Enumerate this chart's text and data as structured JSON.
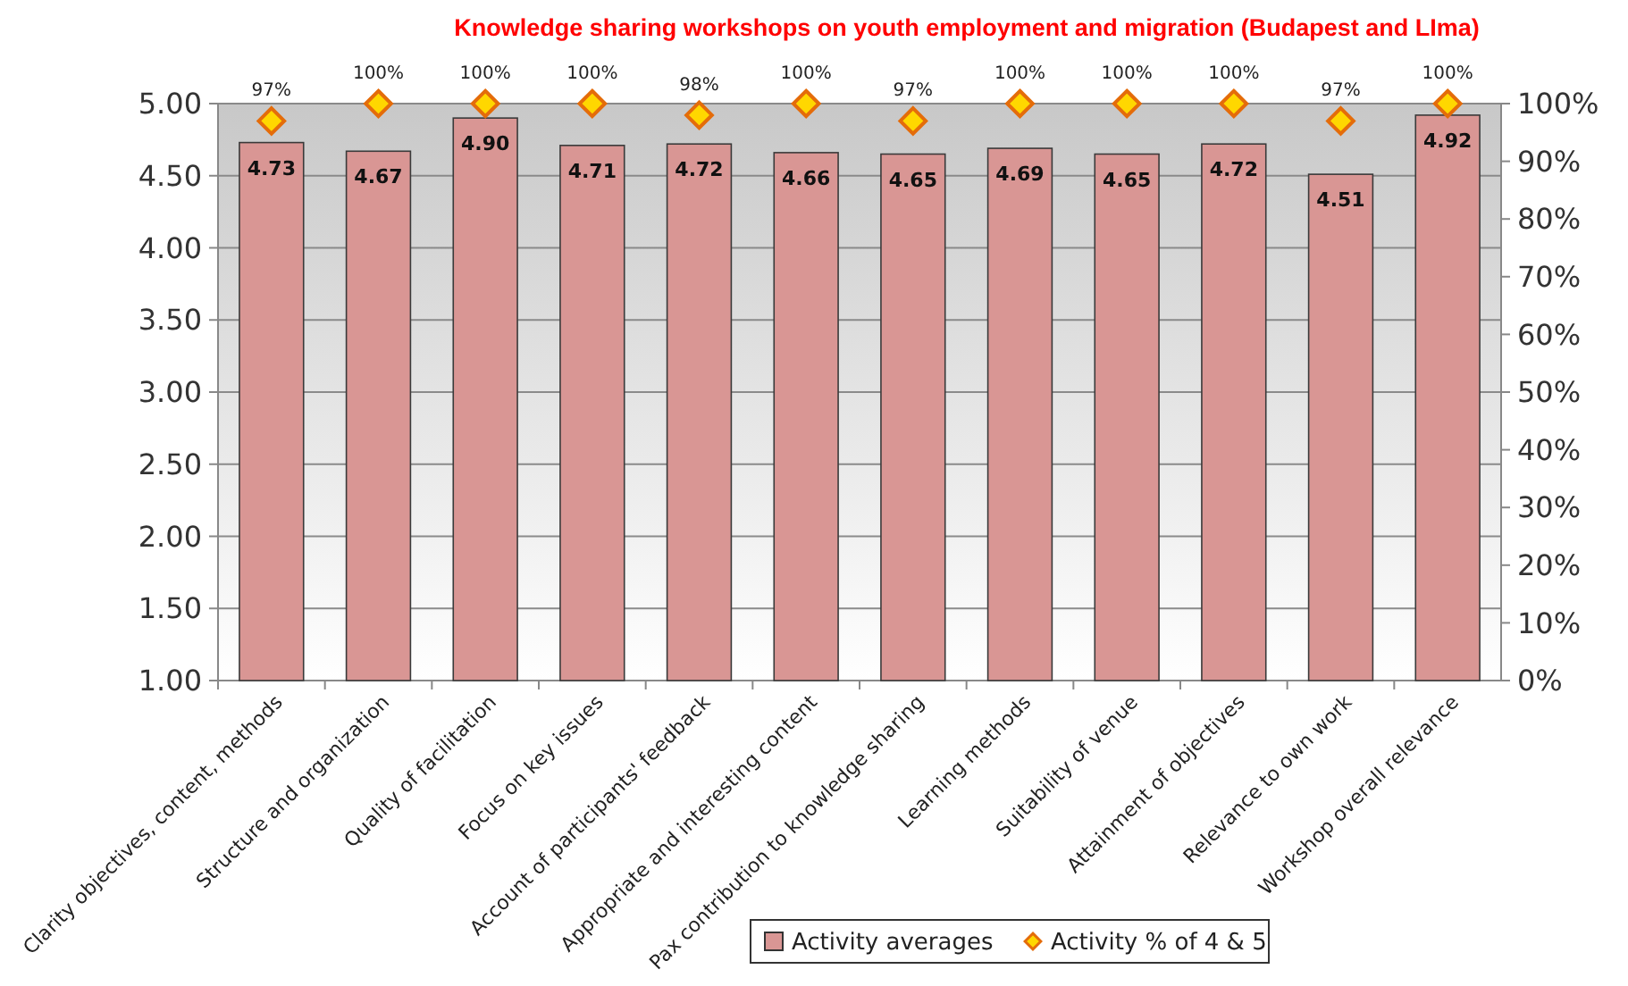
{
  "chart_data": {
    "type": "bar",
    "title": "Knowledge sharing workshops on youth employment and migration (Budapest and LIma)",
    "categories": [
      "Clarity objectives, content, methods",
      "Structure and organization",
      "Quality of facilitation",
      "Focus on key issues",
      "Account of participants' feedback",
      "Appropriate and interesting content",
      "Pax contribution to knowledge sharing",
      "Learning methods",
      "Suitability of venue",
      "Attainment of objectives",
      "Relevance to own work",
      "Workshop overall relevance"
    ],
    "series": [
      {
        "name": "Activity averages",
        "color": "#d99694",
        "values": [
          4.73,
          4.67,
          4.9,
          4.71,
          4.72,
          4.66,
          4.65,
          4.69,
          4.65,
          4.72,
          4.51,
          4.92
        ],
        "value_labels": [
          "4.73",
          "4.67",
          "4.90",
          "4.71",
          "4.72",
          "4.66",
          "4.65",
          "4.69",
          "4.65",
          "4.72",
          "4.51",
          "4.92"
        ]
      },
      {
        "name": "Activity % of 4 & 5",
        "type": "scatter",
        "axis": "y2",
        "color": "#ffd700",
        "values": [
          97,
          100,
          100,
          100,
          98,
          100,
          97,
          100,
          100,
          100,
          97,
          100
        ],
        "value_labels": [
          "97%",
          "100%",
          "100%",
          "100%",
          "98%",
          "100%",
          "97%",
          "100%",
          "100%",
          "100%",
          "97%",
          "100%"
        ]
      }
    ],
    "ylim": [
      1,
      5
    ],
    "yticks": [
      {
        "value": 1,
        "label": "1.00"
      },
      {
        "value": 1.5,
        "label": "1.50"
      },
      {
        "value": 2,
        "label": "2.00"
      },
      {
        "value": 2.5,
        "label": "2.50"
      },
      {
        "value": 3,
        "label": "3.00"
      },
      {
        "value": 3.5,
        "label": "3.50"
      },
      {
        "value": 4,
        "label": "4.00"
      },
      {
        "value": 4.5,
        "label": "4.50"
      },
      {
        "value": 5,
        "label": "5.00"
      }
    ],
    "y2lim": [
      0,
      100
    ],
    "y2ticks": [
      {
        "value": 0,
        "label": "0%"
      },
      {
        "value": 10,
        "label": "10%"
      },
      {
        "value": 20,
        "label": "20%"
      },
      {
        "value": 30,
        "label": "30%"
      },
      {
        "value": 40,
        "label": "40%"
      },
      {
        "value": 50,
        "label": "50%"
      },
      {
        "value": 60,
        "label": "60%"
      },
      {
        "value": 70,
        "label": "70%"
      },
      {
        "value": 80,
        "label": "80%"
      },
      {
        "value": 90,
        "label": "90%"
      },
      {
        "value": 100,
        "label": "100%"
      }
    ],
    "grid": "y",
    "legend": "bottom",
    "marker": "diamond"
  }
}
